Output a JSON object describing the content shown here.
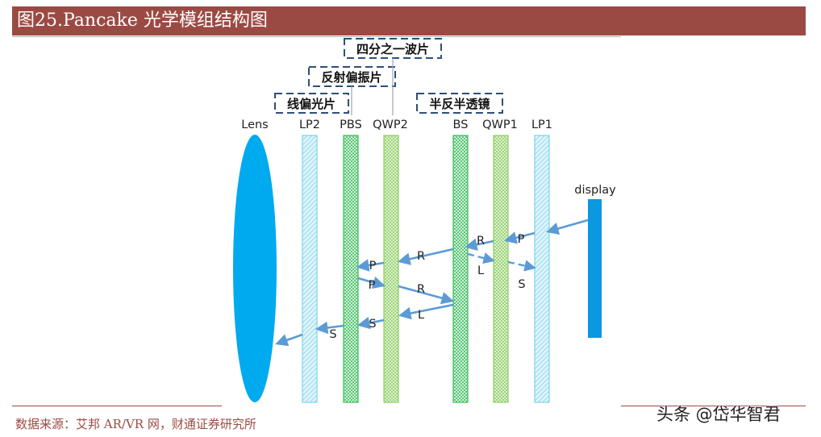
{
  "header": {
    "title": "图25.Pancake 光学模组结构图"
  },
  "diagram": {
    "annotations": {
      "quarter_wave_plate": "四分之一波片",
      "reflective_polarizer": "反射偏振片",
      "linear_polarizer": "线偏光片",
      "half_mirror": "半反半透镜"
    },
    "components": {
      "lens": "Lens",
      "lp2": "LP2",
      "pbs": "PBS",
      "qwp2": "QWP2",
      "bs": "BS",
      "qwp1": "QWP1",
      "lp1": "LP1",
      "display": "display"
    },
    "ray_labels": {
      "p_after_lp1": "P",
      "r_after_qwp1": "R",
      "l_after_bs": "L",
      "s_after_qwp1_return": "S",
      "r_toward_qwp2": "R",
      "p_at_pbs": "P",
      "p_reflected": "P",
      "r_to_bs": "R",
      "l_from_bs": "L",
      "s_at_pbs": "S",
      "s_to_lens": "S"
    },
    "colors": {
      "ray": "#5b9bd5",
      "lens": "#00aaee",
      "display": "#0a98e0",
      "lp": "#7fd3ec",
      "pbs": "#3cbf5a",
      "qwp": "#8fcf68",
      "bs": "#3cbf5a",
      "dash_box": "#2f4f78"
    }
  },
  "footer": {
    "source": "数据来源：艾邦 AR/VR 网，财通证券研究所",
    "watermark": "头条 @岱华智君"
  }
}
